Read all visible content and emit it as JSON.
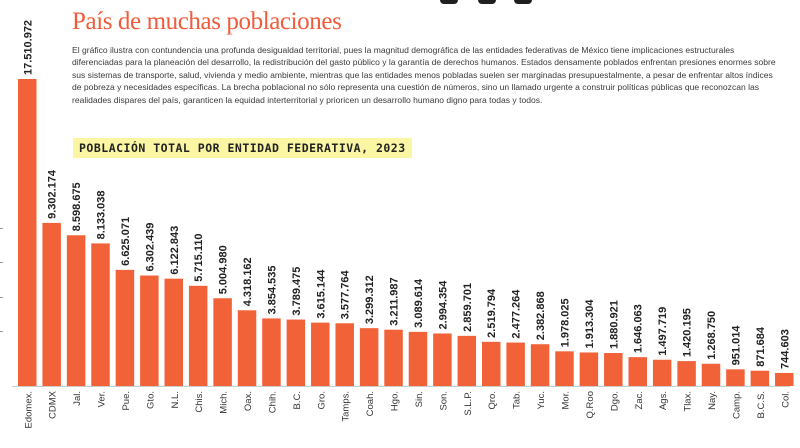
{
  "header": {
    "title": "País de muchas poblaciones",
    "description": "El gráfico ilustra con contundencia una profunda desigualdad territorial, pues la magnitud demográfica de las entidades federativas de México tiene implicaciones estructurales diferenciadas para la planeación del desarrollo, la redistribución del gasto público y la garantía de derechos humanos. Estados densamente poblados enfrentan presiones enormes sobre sus sistemas de transporte, salud, vivienda y medio ambiente, mientras que las entidades menos pobladas suelen ser marginadas presupuestalmente, a pesar de enfrentar altos índices de pobreza y necesidades específicas. La brecha poblacional no sólo representa una cuestión de números, sino un llamado urgente a construir políticas públicas que reconozcan las realidades dispares del país, garanticen la equidad interterritorial y prioricen un desarrollo humano digno para todas y todos.",
    "subtitle": "POBLACIÓN TOTAL POR ENTIDAD FEDERATIVA, 2023"
  },
  "colors": {
    "accent": "#f15a3a",
    "bar": "#f26238",
    "highlight": "#fbf6a3"
  },
  "chart_data": {
    "type": "bar",
    "title": "POBLACIÓN TOTAL POR ENTIDAD FEDERATIVA, 2023",
    "xlabel": "",
    "ylabel": "",
    "ylim": [
      0,
      17510972
    ],
    "grid": false,
    "categories": [
      "Edomex.",
      "CDMX",
      "Jal.",
      "Ver.",
      "Pue.",
      "Gto.",
      "N.L.",
      "Chis.",
      "Mich.",
      "Oax.",
      "Chih.",
      "B.C.",
      "Gro.",
      "Tamps.",
      "Coah.",
      "Hgo.",
      "Sin.",
      "Son.",
      "S.L.P.",
      "Qro.",
      "Tab.",
      "Yuc.",
      "Mor.",
      "Q.Roo",
      "Dgo.",
      "Zac.",
      "Ags.",
      "Tlax.",
      "Nay.",
      "Camp.",
      "B.C.S.",
      "Col."
    ],
    "values": [
      17510972,
      9302174,
      8598675,
      8133038,
      6625071,
      6302439,
      6122843,
      5715110,
      5004980,
      4318162,
      3854535,
      3789475,
      3615144,
      3577764,
      3299312,
      3211987,
      3089614,
      2994354,
      2859701,
      2519794,
      2477264,
      2382868,
      1978025,
      1913304,
      1880921,
      1646063,
      1497719,
      1420195,
      1268750,
      951014,
      871684,
      744603
    ],
    "labels": [
      "17.510.972",
      "9.302.174",
      "8.598.675",
      "8.133.038",
      "6.625.071",
      "6.302.439",
      "6.122.843",
      "5.715.110",
      "5.004.980",
      "4.318.162",
      "3.854.535",
      "3.789.475",
      "3.615.144",
      "3.577.764",
      "3.299.312",
      "3.211.987",
      "3.089.614",
      "2.994.354",
      "2.859.701",
      "2.519.794",
      "2.477.264",
      "2.382.868",
      "1.978.025",
      "1.913.304",
      "1.880.921",
      "1.646.063",
      "1.497.719",
      "1.420.195",
      "1.268.750",
      "951.014",
      "871.684",
      "744.603"
    ]
  }
}
